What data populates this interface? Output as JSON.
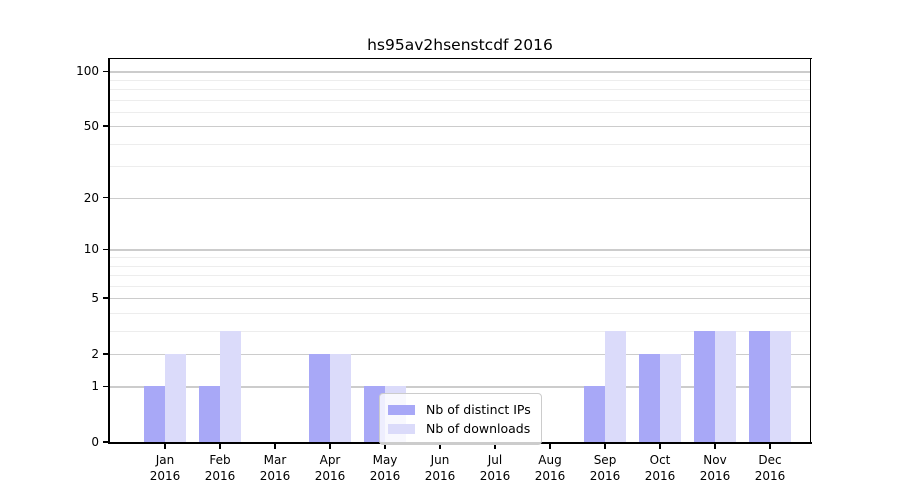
{
  "title": "hs95av2hsenstcdf 2016",
  "chart_data": {
    "type": "bar",
    "title": "hs95av2hsenstcdf 2016",
    "categories": [
      "Jan 2016",
      "Feb 2016",
      "Mar 2016",
      "Apr 2016",
      "May 2016",
      "Jun 2016",
      "Jul 2016",
      "Aug 2016",
      "Sep 2016",
      "Oct 2016",
      "Nov 2016",
      "Dec 2016"
    ],
    "series": [
      {
        "name": "Nb of distinct IPs",
        "color": "#a8a8f7",
        "values": [
          1,
          1,
          0,
          2,
          1,
          0,
          0,
          0,
          1,
          2,
          3,
          3
        ]
      },
      {
        "name": "Nb of downloads",
        "color": "#dbdbfa",
        "values": [
          2,
          3,
          0,
          2,
          1,
          0,
          0,
          0,
          3,
          2,
          3,
          3
        ]
      }
    ],
    "xlabel": "",
    "ylabel": "",
    "yscale": "log1p",
    "ylim": [
      0,
      117
    ],
    "y_major_ticks": [
      0,
      1,
      2,
      5,
      10,
      20,
      50,
      100
    ],
    "y_minor_ticks": [
      3,
      4,
      6,
      7,
      8,
      9,
      30,
      40,
      60,
      70,
      80,
      90
    ],
    "grid": "on",
    "legend_position": "inside-lower-center",
    "colors": {
      "grid_major": "#cccccc",
      "grid_minor": "#ededed",
      "axis": "#000000",
      "background": "#ffffff"
    }
  }
}
